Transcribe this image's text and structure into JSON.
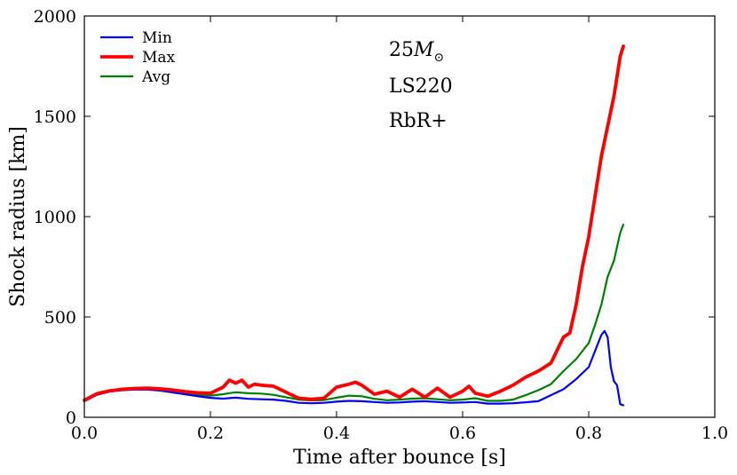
{
  "chart_data": {
    "type": "line",
    "title": "",
    "xlabel": "Time after bounce [s]",
    "ylabel": "Shock radius [km]",
    "xlim": [
      0.0,
      1.0
    ],
    "ylim": [
      0,
      2000
    ],
    "xticks": [
      0.0,
      0.2,
      0.4,
      0.6,
      0.8,
      1.0
    ],
    "xtick_labels": [
      "0.0",
      "0.2",
      "0.4",
      "0.6",
      "0.8",
      "1.0"
    ],
    "yticks": [
      0,
      500,
      1000,
      1500,
      2000
    ],
    "ytick_labels": [
      "0",
      "500",
      "1000",
      "1500",
      "2000"
    ],
    "grid": false,
    "legend_position": "top-left",
    "annotations": [
      {
        "id": "mass",
        "mass_number": "25",
        "symbol": "M",
        "subscript": "⊙"
      },
      {
        "id": "eos",
        "text": "LS220"
      },
      {
        "id": "model",
        "text": "RbR+"
      }
    ],
    "series": [
      {
        "name": "Min",
        "color": "#0000ff",
        "x": [
          0.0,
          0.02,
          0.04,
          0.06,
          0.08,
          0.1,
          0.12,
          0.14,
          0.16,
          0.18,
          0.2,
          0.22,
          0.24,
          0.26,
          0.28,
          0.3,
          0.32,
          0.34,
          0.36,
          0.38,
          0.4,
          0.42,
          0.44,
          0.46,
          0.48,
          0.5,
          0.52,
          0.54,
          0.56,
          0.58,
          0.6,
          0.62,
          0.64,
          0.66,
          0.68,
          0.7,
          0.72,
          0.74,
          0.76,
          0.78,
          0.8,
          0.81,
          0.82,
          0.825,
          0.83,
          0.835,
          0.84,
          0.845,
          0.85,
          0.855
        ],
        "y": [
          80,
          112,
          128,
          135,
          138,
          138,
          133,
          124,
          114,
          105,
          97,
          93,
          98,
          92,
          90,
          88,
          82,
          72,
          70,
          72,
          78,
          82,
          80,
          76,
          72,
          74,
          78,
          80,
          76,
          72,
          74,
          76,
          68,
          68,
          70,
          75,
          80,
          110,
          140,
          190,
          250,
          330,
          410,
          430,
          400,
          250,
          180,
          160,
          65,
          60
        ]
      },
      {
        "name": "Max",
        "color": "#ff0000",
        "x": [
          0.0,
          0.02,
          0.04,
          0.06,
          0.08,
          0.1,
          0.12,
          0.14,
          0.16,
          0.18,
          0.2,
          0.22,
          0.23,
          0.24,
          0.25,
          0.26,
          0.27,
          0.28,
          0.3,
          0.32,
          0.34,
          0.36,
          0.38,
          0.4,
          0.42,
          0.43,
          0.44,
          0.46,
          0.48,
          0.5,
          0.52,
          0.54,
          0.56,
          0.58,
          0.6,
          0.61,
          0.62,
          0.64,
          0.66,
          0.68,
          0.7,
          0.72,
          0.74,
          0.76,
          0.77,
          0.78,
          0.79,
          0.8,
          0.81,
          0.82,
          0.83,
          0.84,
          0.85,
          0.855
        ],
        "y": [
          85,
          118,
          132,
          140,
          144,
          145,
          142,
          136,
          128,
          122,
          120,
          150,
          185,
          170,
          185,
          150,
          165,
          160,
          155,
          125,
          95,
          90,
          95,
          150,
          165,
          175,
          160,
          115,
          130,
          100,
          140,
          100,
          145,
          100,
          130,
          155,
          120,
          105,
          130,
          160,
          200,
          230,
          270,
          400,
          420,
          560,
          750,
          900,
          1100,
          1300,
          1450,
          1600,
          1800,
          1850
        ]
      },
      {
        "name": "Avg",
        "color": "#008000",
        "x": [
          0.0,
          0.02,
          0.04,
          0.06,
          0.08,
          0.1,
          0.12,
          0.14,
          0.16,
          0.18,
          0.2,
          0.22,
          0.24,
          0.26,
          0.28,
          0.3,
          0.32,
          0.34,
          0.36,
          0.38,
          0.4,
          0.42,
          0.44,
          0.46,
          0.48,
          0.5,
          0.52,
          0.54,
          0.56,
          0.58,
          0.6,
          0.62,
          0.64,
          0.66,
          0.68,
          0.7,
          0.72,
          0.74,
          0.76,
          0.78,
          0.8,
          0.81,
          0.82,
          0.83,
          0.84,
          0.85,
          0.855
        ],
        "y": [
          82,
          115,
          130,
          137,
          140,
          141,
          137,
          128,
          119,
          112,
          108,
          115,
          125,
          120,
          118,
          112,
          100,
          88,
          84,
          86,
          98,
          108,
          105,
          92,
          85,
          88,
          93,
          95,
          90,
          85,
          88,
          95,
          82,
          82,
          88,
          110,
          135,
          165,
          230,
          290,
          370,
          460,
          560,
          700,
          780,
          920,
          960
        ]
      }
    ]
  }
}
